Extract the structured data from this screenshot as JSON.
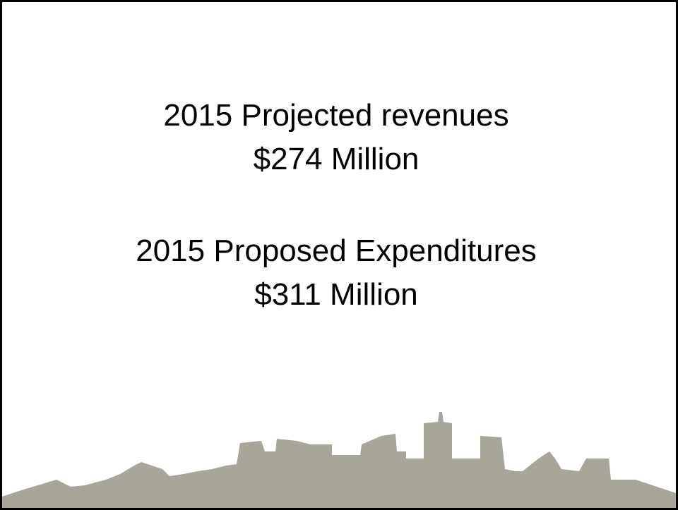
{
  "slide": {
    "blocks": [
      {
        "label": "2015 Projected revenues",
        "amount": "$274 Million"
      },
      {
        "label": "2015 Proposed Expenditures",
        "amount": "$311 Million"
      }
    ]
  }
}
